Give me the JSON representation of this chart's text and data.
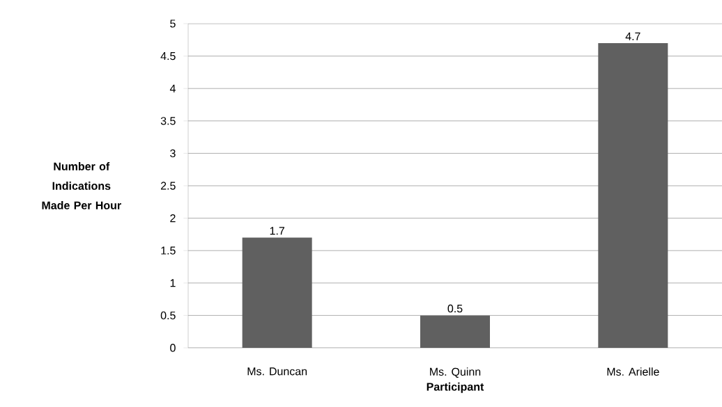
{
  "chart_data": {
    "type": "bar",
    "xlabel": "Participant",
    "ylabel": "Number of Indications Made Per Hour",
    "categories": [
      "Ms. Duncan",
      "Ms. Quinn",
      "Ms. Arielle"
    ],
    "values": [
      1.7,
      0.5,
      4.7
    ],
    "color": "#606060",
    "ylim": [
      0,
      5
    ],
    "yticks": [
      0,
      0.5,
      1,
      1.5,
      2,
      2.5,
      3,
      3.5,
      4,
      4.5,
      5
    ],
    "grid": "y",
    "data_labels": true
  }
}
